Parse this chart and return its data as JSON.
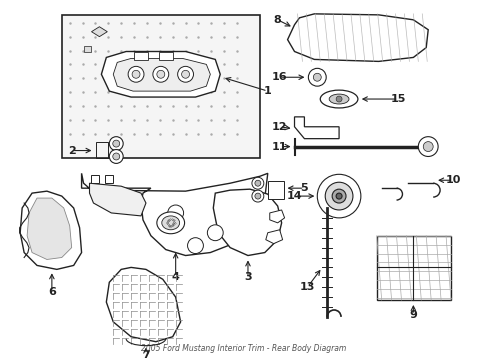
{
  "title": "2005 Ford Mustang Interior Trim - Rear Body Diagram",
  "background_color": "#ffffff",
  "line_color": "#222222",
  "label_color": "#000000",
  "dot_color": "#bbbbbb",
  "box_bg": "#e8e8e8"
}
